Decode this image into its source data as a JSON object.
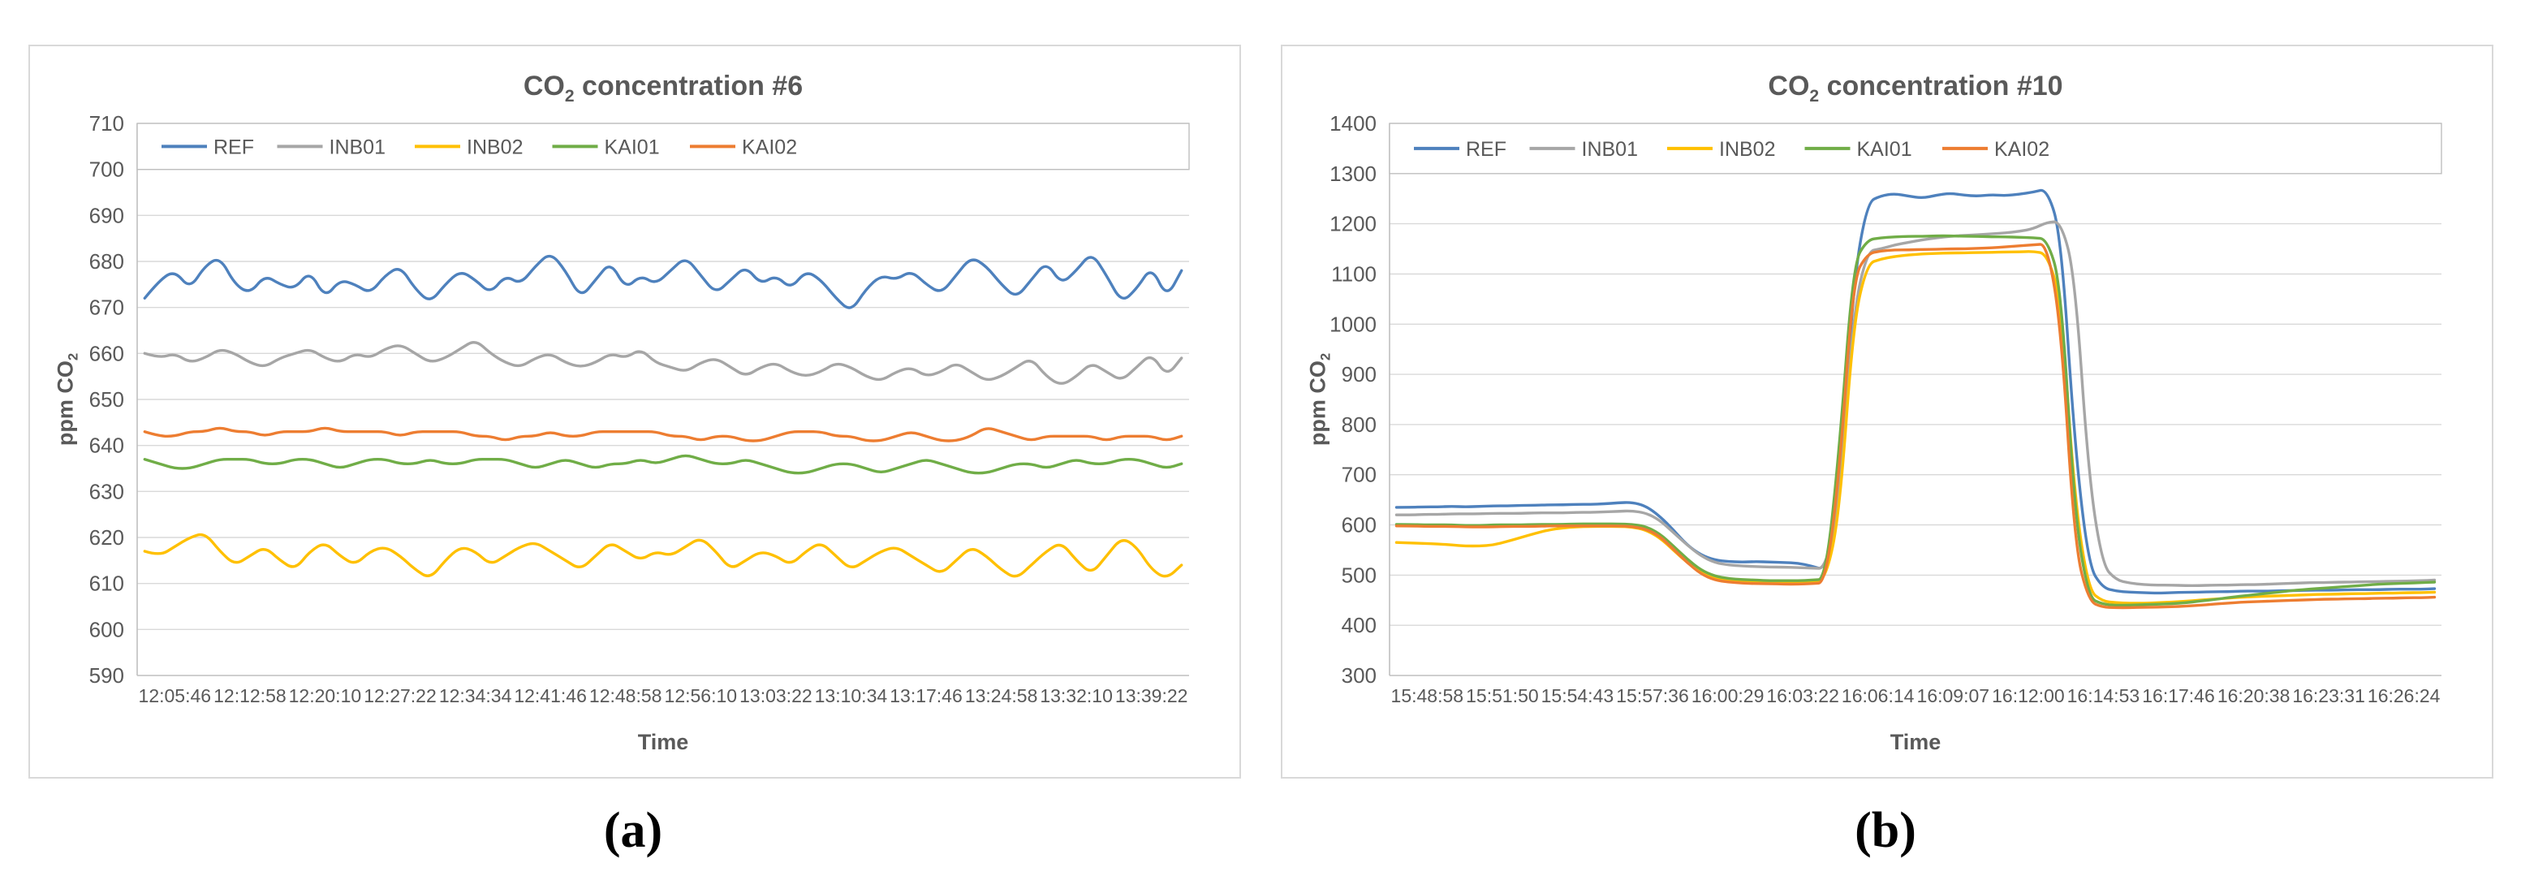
{
  "figure": {
    "background": "#FFFFFF",
    "text_color": "#595959",
    "grid_color": "#D9D9D9",
    "axis_color": "#BFBFBF",
    "panel_border_color": "#D9D9D9",
    "legend_border_color": "#BFBFBF"
  },
  "chart_data": [
    {
      "type": "line",
      "panel_label": "(a)",
      "title": {
        "prefix": "CO",
        "sub": "2",
        "rest": " concentration #6"
      },
      "x_title": "Time",
      "y_title": {
        "prefix": "ppm CO",
        "sub": "2"
      },
      "ylim": [
        590,
        710
      ],
      "ytick_step": 10,
      "grid": true,
      "legend_position": "top",
      "x_ticks": [
        "12:05:46",
        "12:12:58",
        "12:20:10",
        "12:27:22",
        "12:34:34",
        "12:41:46",
        "12:48:58",
        "12:56:10",
        "13:03:22",
        "13:10:34",
        "13:17:46",
        "13:24:58",
        "13:32:10",
        "13:39:22"
      ],
      "series": [
        {
          "name": "REF",
          "color": "#4E81BD",
          "values": [
            672,
            676,
            678,
            674,
            679,
            681,
            675,
            673,
            677,
            675,
            674,
            678,
            672,
            676,
            675,
            673,
            677,
            679,
            674,
            671,
            675,
            678,
            676,
            673,
            677,
            675,
            679,
            682,
            678,
            672,
            676,
            680,
            674,
            677,
            675,
            678,
            681,
            677,
            673,
            676,
            679,
            675,
            677,
            674,
            678,
            676,
            672,
            669,
            674,
            677,
            676,
            678,
            675,
            673,
            677,
            681,
            679,
            675,
            672,
            676,
            680,
            675,
            678,
            682,
            677,
            671,
            674,
            679,
            672,
            678
          ]
        },
        {
          "name": "INB01",
          "color": "#A6A6A6",
          "values": [
            660,
            659,
            660,
            658,
            659,
            661,
            660,
            658,
            657,
            659,
            660,
            661,
            659,
            658,
            660,
            659,
            661,
            662,
            660,
            658,
            659,
            661,
            663,
            660,
            658,
            657,
            659,
            660,
            658,
            657,
            658,
            660,
            659,
            661,
            658,
            657,
            656,
            658,
            659,
            657,
            655,
            657,
            658,
            656,
            655,
            656,
            658,
            657,
            655,
            654,
            656,
            657,
            655,
            656,
            658,
            656,
            654,
            655,
            657,
            659,
            655,
            653,
            655,
            658,
            656,
            654,
            657,
            660,
            655,
            659
          ]
        },
        {
          "name": "INB02",
          "color": "#FFC000",
          "values": [
            617,
            616,
            618,
            620,
            621,
            617,
            614,
            616,
            618,
            615,
            613,
            617,
            619,
            616,
            614,
            617,
            618,
            616,
            613,
            611,
            615,
            618,
            617,
            614,
            616,
            618,
            619,
            617,
            615,
            613,
            616,
            619,
            617,
            615,
            617,
            616,
            618,
            620,
            617,
            613,
            615,
            617,
            616,
            614,
            617,
            619,
            616,
            613,
            615,
            617,
            618,
            616,
            614,
            612,
            615,
            618,
            616,
            613,
            611,
            614,
            617,
            619,
            615,
            612,
            616,
            620,
            618,
            613,
            611,
            614
          ]
        },
        {
          "name": "KAI01",
          "color": "#70AD47",
          "values": [
            637,
            636,
            635,
            635,
            636,
            637,
            637,
            637,
            636,
            636,
            637,
            637,
            636,
            635,
            636,
            637,
            637,
            636,
            636,
            637,
            636,
            636,
            637,
            637,
            637,
            636,
            635,
            636,
            637,
            636,
            635,
            636,
            636,
            637,
            636,
            637,
            638,
            637,
            636,
            636,
            637,
            636,
            635,
            634,
            634,
            635,
            636,
            636,
            635,
            634,
            635,
            636,
            637,
            636,
            635,
            634,
            634,
            635,
            636,
            636,
            635,
            636,
            637,
            636,
            636,
            637,
            637,
            636,
            635,
            636
          ]
        },
        {
          "name": "KAI02",
          "color": "#ED7D31",
          "values": [
            643,
            642,
            642,
            643,
            643,
            644,
            643,
            643,
            642,
            643,
            643,
            643,
            644,
            643,
            643,
            643,
            643,
            642,
            643,
            643,
            643,
            643,
            642,
            642,
            641,
            642,
            642,
            643,
            642,
            642,
            643,
            643,
            643,
            643,
            643,
            642,
            642,
            641,
            642,
            642,
            641,
            641,
            642,
            643,
            643,
            643,
            642,
            642,
            641,
            641,
            642,
            643,
            642,
            641,
            641,
            642,
            644,
            643,
            642,
            641,
            642,
            642,
            642,
            642,
            641,
            642,
            642,
            642,
            641,
            642
          ]
        }
      ]
    },
    {
      "type": "line",
      "panel_label": "(b)",
      "title": {
        "prefix": "CO",
        "sub": "2",
        "rest": " concentration #10"
      },
      "x_title": "Time",
      "y_title": {
        "prefix": "ppm CO",
        "sub": "2"
      },
      "ylim": [
        300,
        1400
      ],
      "ytick_step": 100,
      "grid": true,
      "legend_position": "top",
      "x_ticks": [
        "15:48:58",
        "15:51:50",
        "15:54:43",
        "15:57:36",
        "16:00:29",
        "16:03:22",
        "16:06:14",
        "16:09:07",
        "16:12:00",
        "16:14:53",
        "16:17:46",
        "16:20:38",
        "16:23:31",
        "16:26:24"
      ],
      "series": [
        {
          "name": "REF",
          "color": "#4E81BD",
          "values": [
            635,
            635,
            636,
            636,
            637,
            636,
            637,
            638,
            638,
            639,
            639,
            640,
            640,
            641,
            641,
            642,
            644,
            645,
            638,
            618,
            590,
            560,
            540,
            530,
            527,
            526,
            527,
            526,
            525,
            524,
            518,
            510,
            650,
            1080,
            1242,
            1256,
            1260,
            1255,
            1251,
            1257,
            1261,
            1257,
            1255,
            1258,
            1256,
            1259,
            1263,
            1270,
            1180,
            760,
            520,
            475,
            468,
            466,
            465,
            464,
            465,
            466,
            466,
            467,
            467,
            468,
            468,
            468,
            469,
            469,
            470,
            470,
            470,
            471,
            471,
            471,
            472,
            472,
            472,
            473
          ]
        },
        {
          "name": "INB01",
          "color": "#A6A6A6",
          "values": [
            620,
            620,
            621,
            621,
            622,
            622,
            622,
            623,
            623,
            623,
            624,
            624,
            624,
            625,
            625,
            626,
            627,
            628,
            624,
            610,
            585,
            560,
            538,
            525,
            520,
            518,
            517,
            516,
            516,
            515,
            514,
            513,
            640,
            1020,
            1145,
            1150,
            1158,
            1163,
            1168,
            1172,
            1175,
            1177,
            1178,
            1180,
            1182,
            1185,
            1190,
            1203,
            1205,
            1100,
            700,
            520,
            490,
            484,
            481,
            480,
            480,
            479,
            479,
            480,
            480,
            481,
            481,
            482,
            483,
            484,
            485,
            485,
            486,
            486,
            487,
            487,
            488,
            488,
            489,
            490
          ]
        },
        {
          "name": "INB02",
          "color": "#FFC000",
          "values": [
            565,
            564,
            563,
            562,
            560,
            558,
            558,
            560,
            567,
            575,
            583,
            590,
            594,
            596,
            597,
            597,
            597,
            596,
            590,
            575,
            550,
            525,
            505,
            495,
            490,
            488,
            487,
            487,
            486,
            486,
            487,
            490,
            620,
            1000,
            1120,
            1130,
            1135,
            1138,
            1140,
            1141,
            1142,
            1142,
            1143,
            1143,
            1144,
            1144,
            1145,
            1140,
            1050,
            650,
            470,
            448,
            445,
            444,
            444,
            445,
            446,
            448,
            450,
            452,
            454,
            456,
            457,
            458,
            459,
            460,
            461,
            462,
            462,
            463,
            463,
            464,
            464,
            465,
            465,
            466
          ]
        },
        {
          "name": "KAI01",
          "color": "#70AD47",
          "values": [
            601,
            601,
            600,
            600,
            600,
            599,
            599,
            600,
            600,
            600,
            601,
            601,
            601,
            602,
            602,
            602,
            602,
            601,
            597,
            583,
            558,
            532,
            510,
            498,
            493,
            491,
            490,
            489,
            489,
            489,
            490,
            492,
            750,
            1120,
            1168,
            1172,
            1174,
            1175,
            1175,
            1176,
            1176,
            1175,
            1175,
            1174,
            1174,
            1173,
            1172,
            1170,
            1080,
            620,
            455,
            442,
            440,
            440,
            441,
            442,
            443,
            445,
            448,
            451,
            455,
            458,
            461,
            464,
            467,
            470,
            472,
            474,
            476,
            478,
            480,
            482,
            483,
            484,
            485,
            486
          ]
        },
        {
          "name": "KAI02",
          "color": "#ED7D31",
          "values": [
            598,
            598,
            597,
            597,
            597,
            596,
            596,
            596,
            597,
            597,
            597,
            598,
            598,
            598,
            598,
            598,
            598,
            597,
            592,
            578,
            552,
            525,
            502,
            490,
            486,
            484,
            483,
            483,
            482,
            482,
            483,
            485,
            700,
            1090,
            1140,
            1146,
            1148,
            1148,
            1149,
            1149,
            1150,
            1150,
            1151,
            1152,
            1154,
            1156,
            1158,
            1160,
            1000,
            560,
            448,
            436,
            435,
            435,
            436,
            436,
            437,
            438,
            440,
            442,
            444,
            446,
            447,
            448,
            449,
            450,
            451,
            452,
            452,
            453,
            453,
            454,
            454,
            455,
            455,
            456
          ]
        }
      ]
    }
  ]
}
